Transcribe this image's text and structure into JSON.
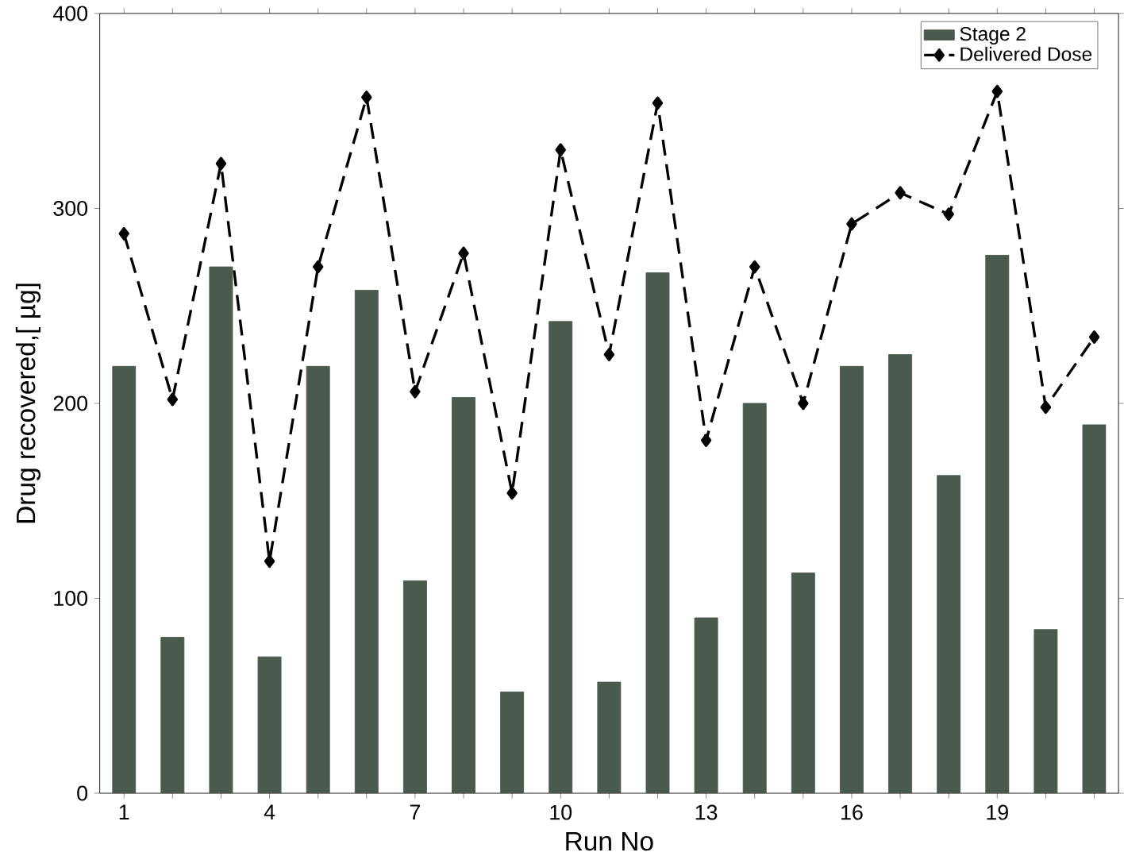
{
  "chart_data": {
    "type": "bar",
    "xlabel": "Run No",
    "ylabel": "Drug recovered,[ µg]",
    "categories": [
      "1",
      null,
      null,
      "4",
      null,
      null,
      "7",
      null,
      null,
      "10",
      null,
      null,
      "13",
      null,
      null,
      "16",
      null,
      null,
      "19",
      null,
      null
    ],
    "series": [
      {
        "name": "Stage 2",
        "color": "#4a5a4f",
        "values": [
          219,
          80,
          270,
          70,
          219,
          258,
          109,
          203,
          52,
          242,
          57,
          267,
          90,
          200,
          113,
          219,
          225,
          163,
          276,
          84,
          189
        ]
      },
      {
        "name": "Delivered Dose",
        "type": "line",
        "color": "#000000",
        "values": [
          287,
          202,
          323,
          119,
          270,
          357,
          206,
          277,
          154,
          330,
          225,
          354,
          181,
          270,
          200,
          292,
          308,
          297,
          360,
          198,
          234
        ]
      }
    ],
    "ylim": [
      0,
      400
    ],
    "yticks": [
      0,
      100,
      200,
      300,
      400
    ],
    "grid": false,
    "legend": "top right",
    "marker": "diamond",
    "line_style": "dashed"
  }
}
